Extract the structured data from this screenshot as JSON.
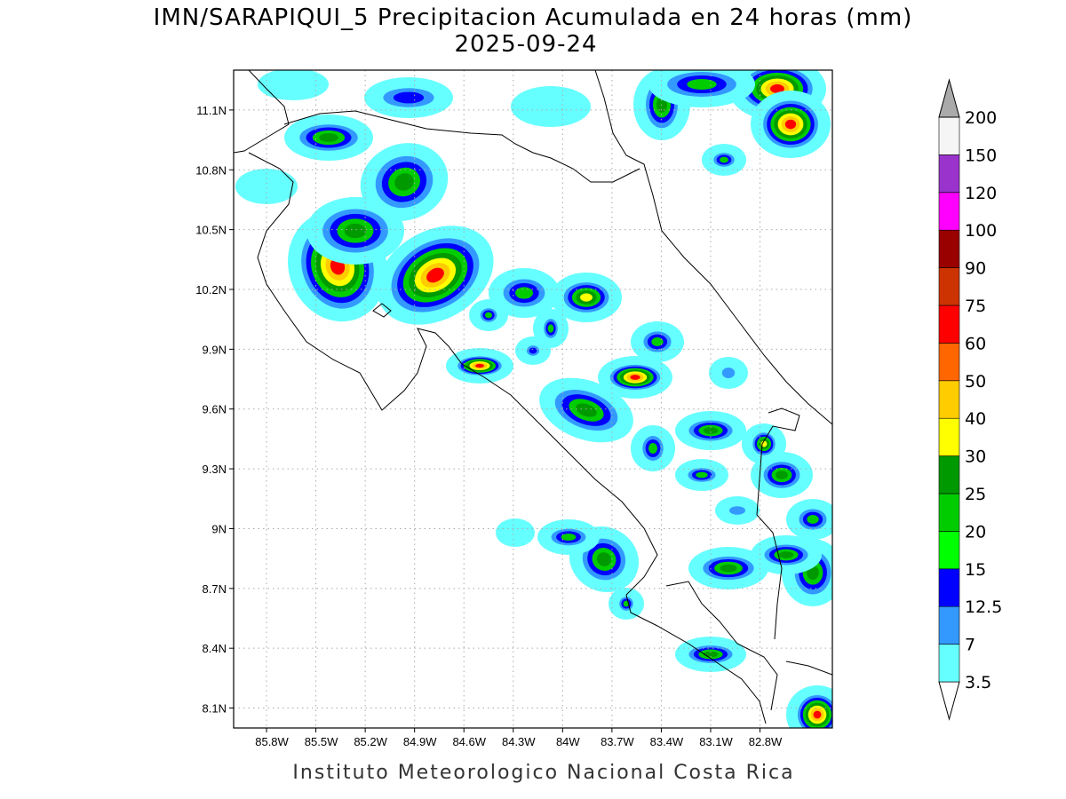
{
  "title": "IMN/SARAPIQUI_5 Precipitacion Acumulada en 24 horas (mm)",
  "subtitle": "2025-09-24",
  "footer": "Instituto Meteorologico Nacional Costa Rica",
  "map": {
    "xlim": [
      -86.0,
      -82.36
    ],
    "ylim": [
      8.0,
      11.3
    ],
    "xticks": [
      {
        "value": -85.8,
        "label": "85.8W"
      },
      {
        "value": -85.5,
        "label": "85.5W"
      },
      {
        "value": -85.2,
        "label": "85.2W"
      },
      {
        "value": -84.9,
        "label": "84.9W"
      },
      {
        "value": -84.6,
        "label": "84.6W"
      },
      {
        "value": -84.3,
        "label": "84.3W"
      },
      {
        "value": -84.0,
        "label": "84W"
      },
      {
        "value": -83.7,
        "label": "83.7W"
      },
      {
        "value": -83.4,
        "label": "83.4W"
      },
      {
        "value": -83.1,
        "label": "83.1W"
      },
      {
        "value": -82.8,
        "label": "82.8W"
      }
    ],
    "yticks": [
      {
        "value": 8.1,
        "label": "8.1N"
      },
      {
        "value": 8.4,
        "label": "8.4N"
      },
      {
        "value": 8.7,
        "label": "8.7N"
      },
      {
        "value": 9.0,
        "label": "9N"
      },
      {
        "value": 9.3,
        "label": "9.3N"
      },
      {
        "value": 9.6,
        "label": "9.6N"
      },
      {
        "value": 9.9,
        "label": "9.9N"
      },
      {
        "value": 10.2,
        "label": "10.2N"
      },
      {
        "value": 10.5,
        "label": "10.5N"
      },
      {
        "value": 10.8,
        "label": "10.8N"
      },
      {
        "value": 11.1,
        "label": "11.1N"
      }
    ]
  },
  "colorbar": {
    "levels": [
      3.5,
      7,
      12.5,
      15,
      20,
      25,
      30,
      40,
      50,
      60,
      75,
      90,
      100,
      120,
      150,
      200
    ],
    "colors": [
      "#ffffff",
      "#66ffff",
      "#3399ff",
      "#0000ff",
      "#00ff00",
      "#00cc00",
      "#009900",
      "#ffff00",
      "#ffcc00",
      "#ff6600",
      "#ff0000",
      "#cc3300",
      "#990000",
      "#ff00ff",
      "#9933cc",
      "#f5f5f5",
      "#aaaaaa"
    ]
  }
}
